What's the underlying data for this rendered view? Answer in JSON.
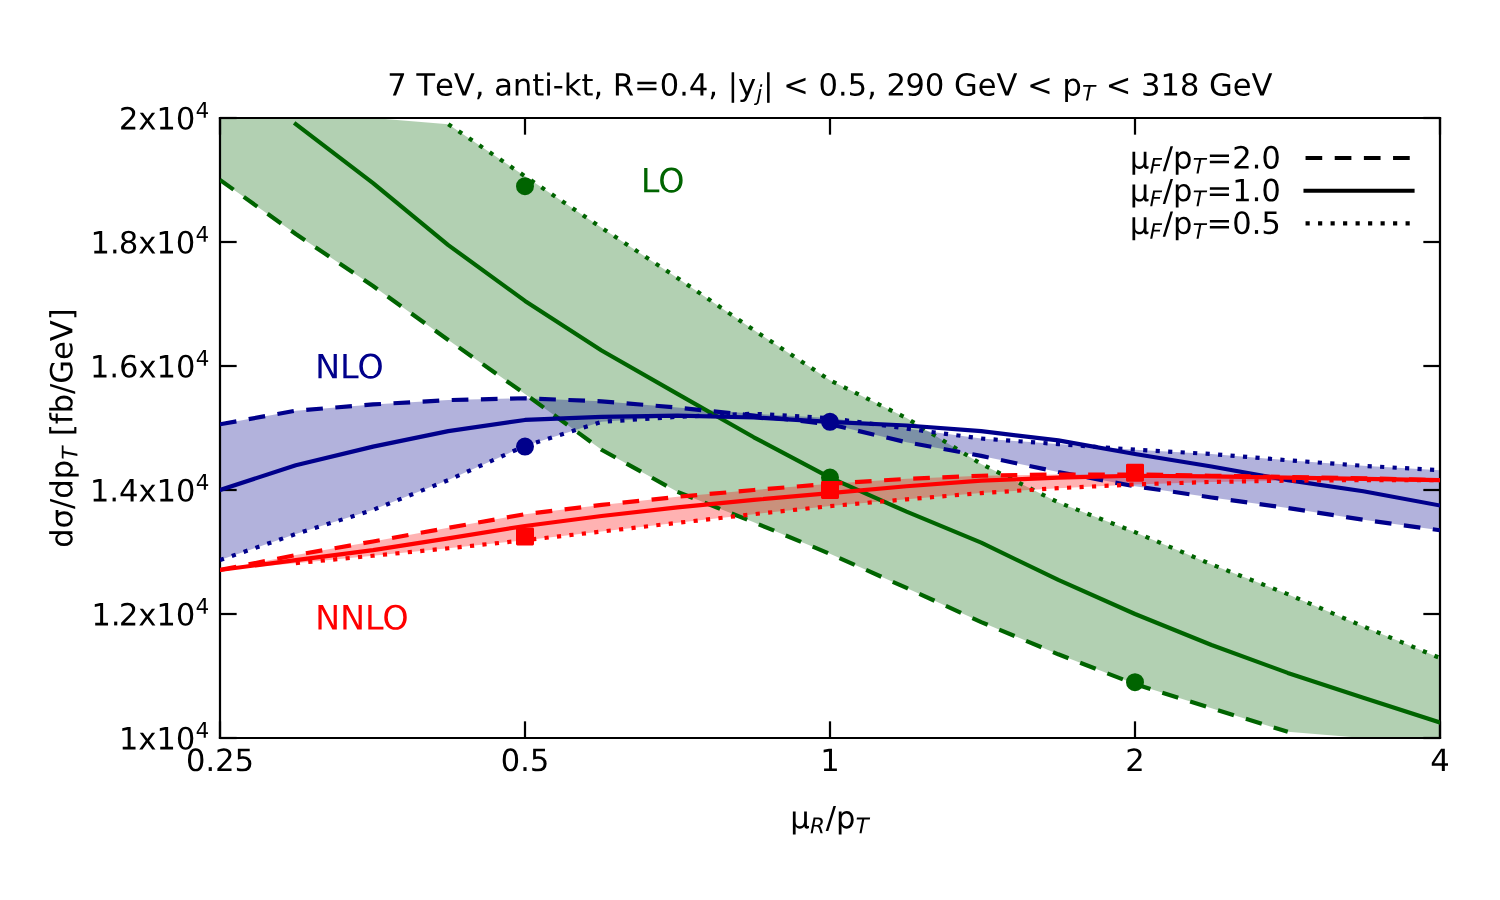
{
  "chart_data": {
    "type": "line",
    "title": "7 TeV, anti-kt, R=0.4, |y$_{j}$| < 0.5, 290 GeV < p$_{T}$ < 318 GeV",
    "xlabel": "μ$_{R}$/p$_{T}$",
    "ylabel": "dσ/dp$_{T}$ [fb/GeV]",
    "log": "x",
    "xlim": [
      0.25,
      4
    ],
    "xticks": [
      0.25,
      0.5,
      1,
      2,
      4
    ],
    "ylim": [
      10000,
      20000
    ],
    "yticks": [
      {
        "value": 10000,
        "label": "1x10$^{4}$"
      },
      {
        "value": 12000,
        "label": "1.2x10$^{4}$"
      },
      {
        "value": 14000,
        "label": "1.4x10$^{4}$"
      },
      {
        "value": 16000,
        "label": "1.6x10$^{4}$"
      },
      {
        "value": 18000,
        "label": "1.8x10$^{4}$"
      },
      {
        "value": 20000,
        "label": "2x10$^{4}$"
      }
    ],
    "grid": false,
    "legend": "top right",
    "x": [
      0.25,
      0.297,
      0.354,
      0.42,
      0.5,
      0.595,
      0.707,
      0.841,
      1,
      1.19,
      1.41,
      1.68,
      2,
      2.38,
      2.83,
      3.36,
      4
    ],
    "series": [
      {
        "color": "#006400",
        "line_style": "dashed",
        "values": [
          19000,
          18130,
          17290,
          16420,
          15550,
          14650,
          13970,
          13480,
          12970,
          12420,
          11870,
          11350,
          10870,
          10480,
          10100,
          null,
          null
        ]
      },
      {
        "color": "#006400",
        "line_style": "dotted",
        "values": [
          null,
          null,
          null,
          19900,
          19060,
          18230,
          17420,
          16580,
          15770,
          15160,
          14420,
          13800,
          13320,
          12800,
          12320,
          11800,
          11290
        ]
      },
      {
        "color": "#006400",
        "line_style": "solid",
        "name": "LO",
        "values": [
          null,
          19900,
          18950,
          17950,
          17050,
          16250,
          15550,
          14850,
          14200,
          13650,
          13150,
          12550,
          12000,
          11500,
          11050,
          10650,
          10250
        ],
        "lower": [
          19000,
          18130,
          17290,
          16420,
          15550,
          14650,
          13970,
          13480,
          12970,
          12420,
          11870,
          11350,
          10870,
          10480,
          10100,
          10000,
          10000
        ],
        "upper": [
          20000,
          20000,
          20000,
          19900,
          19060,
          18230,
          17420,
          16580,
          15770,
          15160,
          14420,
          13800,
          13320,
          12800,
          12320,
          11800,
          11290
        ]
      },
      {
        "color": "#00008b",
        "line_style": "dashed",
        "values": [
          15060,
          15280,
          15380,
          15450,
          15480,
          15430,
          15330,
          15200,
          15060,
          14770,
          14550,
          14290,
          14060,
          13880,
          13710,
          13520,
          13350
        ]
      },
      {
        "color": "#00008b",
        "line_style": "dotted",
        "values": [
          12870,
          13290,
          13680,
          14160,
          14710,
          15100,
          15180,
          15230,
          15160,
          14990,
          14830,
          14740,
          14650,
          14580,
          14480,
          14390,
          14320
        ]
      },
      {
        "color": "#00008b",
        "line_style": "solid",
        "name": "NLO",
        "values": [
          14000,
          14400,
          14700,
          14950,
          15130,
          15180,
          15200,
          15170,
          15100,
          15040,
          14950,
          14800,
          14580,
          14380,
          14160,
          13980,
          13750
        ],
        "lower": [
          12870,
          13290,
          13680,
          14160,
          14710,
          15100,
          15180,
          15200,
          15060,
          14770,
          14550,
          14290,
          14060,
          13880,
          13710,
          13520,
          13350
        ],
        "upper": [
          15060,
          15280,
          15380,
          15450,
          15480,
          15430,
          15330,
          15230,
          15160,
          14990,
          14830,
          14740,
          14650,
          14580,
          14480,
          14390,
          14320
        ]
      },
      {
        "color": "#ff0000",
        "line_style": "dashed",
        "values": [
          12710,
          12950,
          13170,
          13390,
          13610,
          13760,
          13890,
          14000,
          14100,
          14180,
          14230,
          14250,
          14250,
          14230,
          14210,
          14190,
          14160
        ]
      },
      {
        "color": "#ff0000",
        "line_style": "dotted",
        "x": [
          0.297,
          0.354,
          0.42,
          0.5,
          0.595,
          0.707,
          0.841,
          1,
          1.19,
          1.41,
          1.68,
          2,
          2.38,
          2.83,
          3.36,
          4
        ],
        "values": [
          12820,
          12940,
          13060,
          13190,
          13330,
          13470,
          13610,
          13740,
          13850,
          13950,
          14030,
          14090,
          14130,
          14150,
          14160,
          14160
        ]
      },
      {
        "color": "#ff0000",
        "line_style": "solid",
        "name": "NNLO",
        "values": [
          12710,
          12870,
          13030,
          13220,
          13420,
          13580,
          13720,
          13840,
          13950,
          14060,
          14150,
          14200,
          14230,
          14220,
          14200,
          14180,
          14160
        ],
        "lower": [
          12710,
          12820,
          12940,
          13060,
          13190,
          13330,
          13470,
          13610,
          13740,
          13850,
          13950,
          14030,
          14090,
          14130,
          14150,
          14160,
          14160
        ],
        "upper": [
          12710,
          12950,
          13170,
          13390,
          13610,
          13760,
          13890,
          14000,
          14100,
          14180,
          14230,
          14250,
          14250,
          14230,
          14210,
          14190,
          14160
        ]
      },
      {
        "type": "scatter",
        "marker": "circle",
        "color": "#006400",
        "x": [
          0.5,
          1,
          2
        ],
        "values": [
          18900,
          14200,
          10900
        ]
      },
      {
        "type": "scatter",
        "marker": "circle",
        "color": "#00008b",
        "x": [
          0.5,
          1
        ],
        "values": [
          14700,
          15100
        ]
      },
      {
        "type": "scatter",
        "marker": "square",
        "color": "#ff0000",
        "x": [
          0.5,
          1,
          2
        ],
        "values": [
          13250,
          14000,
          14280
        ]
      },
      {
        "name": "μ$_{F}$/p$_{T}$=2.0",
        "color": "#000000",
        "line_style": "dashed",
        "values": [
          null,
          null,
          null,
          null,
          null,
          null,
          null,
          null,
          null,
          null,
          null,
          null,
          null,
          null,
          null,
          null,
          null
        ]
      },
      {
        "name": "μ$_{F}$/p$_{T}$=1.0",
        "color": "#000000",
        "line_style": "solid",
        "values": [
          null,
          null,
          null,
          null,
          null,
          null,
          null,
          null,
          null,
          null,
          null,
          null,
          null,
          null,
          null,
          null,
          null
        ]
      },
      {
        "name": "μ$_{F}$/p$_{T}$=0.5",
        "color": "#000000",
        "line_style": "dotted",
        "values": [
          null,
          null,
          null,
          null,
          null,
          null,
          null,
          null,
          null,
          null,
          null,
          null,
          null,
          null,
          null,
          null,
          null
        ]
      }
    ]
  }
}
